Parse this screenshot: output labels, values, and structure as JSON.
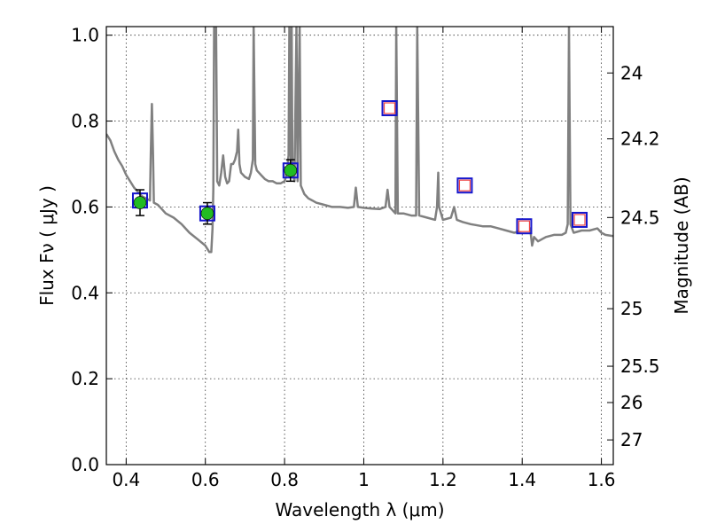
{
  "chart_data": {
    "type": "line",
    "xlabel": "Wavelength  λ (μm)",
    "ylabel": "Flux  Fν  ( μJy )",
    "y2label": "Magnitude (AB)",
    "xlim": [
      0.35,
      1.63
    ],
    "ylim": [
      0.0,
      1.02
    ],
    "grid": true,
    "x_ticks": [
      {
        "value": 0.4,
        "label": "0.4"
      },
      {
        "value": 0.6,
        "label": "0.6"
      },
      {
        "value": 0.8,
        "label": "0.8"
      },
      {
        "value": 1.0,
        "label": "1"
      },
      {
        "value": 1.2,
        "label": "1.2"
      },
      {
        "value": 1.4,
        "label": "1.4"
      },
      {
        "value": 1.6,
        "label": "1.6"
      }
    ],
    "y_ticks": [
      {
        "value": 0.0,
        "label": "0.0"
      },
      {
        "value": 0.2,
        "label": "0.2"
      },
      {
        "value": 0.4,
        "label": "0.4"
      },
      {
        "value": 0.6,
        "label": "0.6"
      },
      {
        "value": 0.8,
        "label": "0.8"
      },
      {
        "value": 1.0,
        "label": "1.0"
      }
    ],
    "y2_ticks": [
      {
        "value": 24.0,
        "label": "24"
      },
      {
        "value": 24.2,
        "label": "24.2"
      },
      {
        "value": 24.5,
        "label": "24.5"
      },
      {
        "value": 25.0,
        "label": "25"
      },
      {
        "value": 25.5,
        "label": "25.5"
      },
      {
        "value": 26.0,
        "label": "26"
      },
      {
        "value": 27.0,
        "label": "27"
      }
    ],
    "colors": {
      "model": "#808080",
      "observed": "#22bb22",
      "model_box": "#1515cc",
      "predicted": "#ee4444"
    },
    "model_spectrum": [
      [
        0.35,
        0.77
      ],
      [
        0.36,
        0.755
      ],
      [
        0.37,
        0.73
      ],
      [
        0.38,
        0.71
      ],
      [
        0.39,
        0.695
      ],
      [
        0.4,
        0.675
      ],
      [
        0.41,
        0.66
      ],
      [
        0.42,
        0.645
      ],
      [
        0.43,
        0.635
      ],
      [
        0.44,
        0.625
      ],
      [
        0.45,
        0.62
      ],
      [
        0.46,
        0.615
      ],
      [
        0.462,
        0.72
      ],
      [
        0.465,
        0.84
      ],
      [
        0.468,
        0.72
      ],
      [
        0.47,
        0.61
      ],
      [
        0.48,
        0.605
      ],
      [
        0.49,
        0.595
      ],
      [
        0.5,
        0.585
      ],
      [
        0.52,
        0.575
      ],
      [
        0.54,
        0.56
      ],
      [
        0.56,
        0.54
      ],
      [
        0.58,
        0.525
      ],
      [
        0.6,
        0.51
      ],
      [
        0.61,
        0.495
      ],
      [
        0.615,
        0.495
      ],
      [
        0.618,
        0.55
      ],
      [
        0.62,
        0.64
      ],
      [
        0.622,
        1.02
      ],
      [
        0.627,
        1.02
      ],
      [
        0.63,
        0.66
      ],
      [
        0.635,
        0.65
      ],
      [
        0.64,
        0.68
      ],
      [
        0.645,
        0.72
      ],
      [
        0.65,
        0.67
      ],
      [
        0.655,
        0.655
      ],
      [
        0.66,
        0.66
      ],
      [
        0.665,
        0.7
      ],
      [
        0.67,
        0.7
      ],
      [
        0.675,
        0.71
      ],
      [
        0.68,
        0.73
      ],
      [
        0.683,
        0.78
      ],
      [
        0.686,
        0.7
      ],
      [
        0.69,
        0.68
      ],
      [
        0.7,
        0.67
      ],
      [
        0.71,
        0.665
      ],
      [
        0.715,
        0.68
      ],
      [
        0.72,
        0.71
      ],
      [
        0.722,
        1.02
      ],
      [
        0.726,
        0.7
      ],
      [
        0.73,
        0.685
      ],
      [
        0.74,
        0.675
      ],
      [
        0.75,
        0.665
      ],
      [
        0.76,
        0.66
      ],
      [
        0.77,
        0.66
      ],
      [
        0.78,
        0.655
      ],
      [
        0.79,
        0.655
      ],
      [
        0.8,
        0.66
      ],
      [
        0.805,
        0.675
      ],
      [
        0.81,
        0.72
      ],
      [
        0.812,
        1.02
      ],
      [
        0.816,
        0.7
      ],
      [
        0.818,
        1.02
      ],
      [
        0.82,
        0.68
      ],
      [
        0.825,
        0.66
      ],
      [
        0.83,
        1.02
      ],
      [
        0.833,
        0.66
      ],
      [
        0.838,
        1.02
      ],
      [
        0.841,
        0.65
      ],
      [
        0.85,
        0.63
      ],
      [
        0.86,
        0.62
      ],
      [
        0.87,
        0.615
      ],
      [
        0.88,
        0.61
      ],
      [
        0.9,
        0.605
      ],
      [
        0.92,
        0.6
      ],
      [
        0.94,
        0.6
      ],
      [
        0.96,
        0.598
      ],
      [
        0.975,
        0.6
      ],
      [
        0.98,
        0.645
      ],
      [
        0.985,
        0.6
      ],
      [
        1.0,
        0.598
      ],
      [
        1.02,
        0.596
      ],
      [
        1.04,
        0.595
      ],
      [
        1.055,
        0.6
      ],
      [
        1.06,
        0.64
      ],
      [
        1.065,
        0.6
      ],
      [
        1.08,
        0.585
      ],
      [
        1.082,
        1.02
      ],
      [
        1.086,
        0.585
      ],
      [
        1.1,
        0.585
      ],
      [
        1.12,
        0.58
      ],
      [
        1.132,
        0.58
      ],
      [
        1.135,
        1.02
      ],
      [
        1.14,
        0.58
      ],
      [
        1.16,
        0.575
      ],
      [
        1.18,
        0.57
      ],
      [
        1.185,
        0.6
      ],
      [
        1.188,
        0.68
      ],
      [
        1.19,
        0.6
      ],
      [
        1.2,
        0.57
      ],
      [
        1.22,
        0.575
      ],
      [
        1.228,
        0.6
      ],
      [
        1.235,
        0.57
      ],
      [
        1.25,
        0.565
      ],
      [
        1.27,
        0.56
      ],
      [
        1.3,
        0.555
      ],
      [
        1.32,
        0.555
      ],
      [
        1.34,
        0.55
      ],
      [
        1.36,
        0.545
      ],
      [
        1.38,
        0.54
      ],
      [
        1.4,
        0.545
      ],
      [
        1.42,
        0.55
      ],
      [
        1.425,
        0.51
      ],
      [
        1.43,
        0.53
      ],
      [
        1.44,
        0.52
      ],
      [
        1.45,
        0.525
      ],
      [
        1.46,
        0.53
      ],
      [
        1.48,
        0.535
      ],
      [
        1.5,
        0.535
      ],
      [
        1.51,
        0.54
      ],
      [
        1.515,
        0.56
      ],
      [
        1.518,
        1.02
      ],
      [
        1.522,
        0.56
      ],
      [
        1.53,
        0.54
      ],
      [
        1.55,
        0.545
      ],
      [
        1.57,
        0.545
      ],
      [
        1.59,
        0.55
      ],
      [
        1.6,
        0.54
      ],
      [
        1.61,
        0.535
      ],
      [
        1.63,
        0.532
      ]
    ],
    "model_boxes": [
      {
        "x": 0.435,
        "y": 0.615
      },
      {
        "x": 0.605,
        "y": 0.585
      },
      {
        "x": 0.815,
        "y": 0.685
      },
      {
        "x": 1.065,
        "y": 0.83
      },
      {
        "x": 1.255,
        "y": 0.65
      },
      {
        "x": 1.405,
        "y": 0.555
      },
      {
        "x": 1.545,
        "y": 0.57
      }
    ],
    "predicted_points": [
      {
        "x": 1.065,
        "y": 0.83
      },
      {
        "x": 1.255,
        "y": 0.65
      },
      {
        "x": 1.405,
        "y": 0.555
      },
      {
        "x": 1.545,
        "y": 0.57
      }
    ],
    "observed_points": [
      {
        "x": 0.435,
        "y": 0.61,
        "err": 0.03
      },
      {
        "x": 0.605,
        "y": 0.585,
        "err": 0.025
      },
      {
        "x": 0.815,
        "y": 0.685,
        "err": 0.025
      }
    ]
  }
}
